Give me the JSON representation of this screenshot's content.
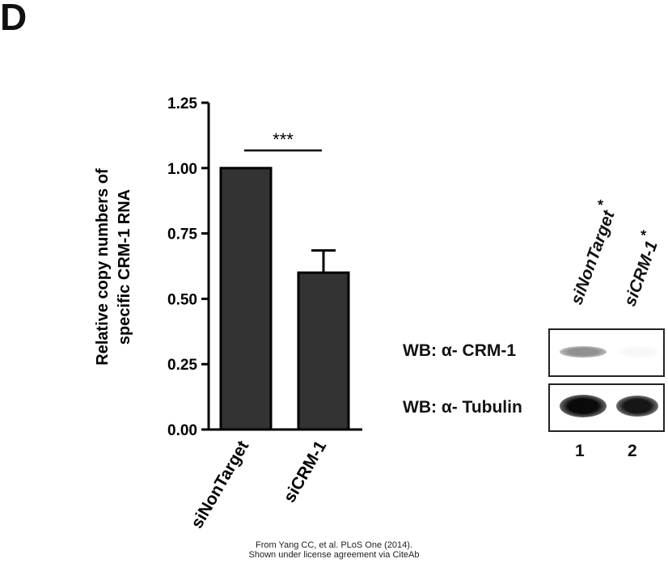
{
  "panel_label": "D",
  "chart_data": {
    "type": "bar",
    "categories": [
      "siNonTarget",
      "siCRM-1"
    ],
    "values": [
      1.0,
      0.6
    ],
    "errors": [
      0.0,
      0.085
    ],
    "ylabel_line1": "Relative copy numbers of",
    "ylabel_line2": "specific CRM-1 RNA",
    "ylim": [
      0,
      1.25
    ],
    "yticks": [
      "0.00",
      "0.25",
      "0.50",
      "0.75",
      "1.00",
      "1.25"
    ],
    "significance": "***",
    "bar_color": "#333333"
  },
  "western_blot": {
    "lanes": [
      {
        "label": "siNonTarget",
        "mark": "*",
        "number": "1"
      },
      {
        "label": "siCRM-1",
        "mark": "*",
        "number": "2"
      }
    ],
    "rows": [
      {
        "label": "WB: α- CRM-1",
        "band_levels": [
          0.45,
          0.03
        ]
      },
      {
        "label": "WB: α- Tubulin",
        "band_levels": [
          1.0,
          0.95
        ]
      }
    ]
  },
  "credit": {
    "line1": "From Yang CC, et al. PLoS One (2014).",
    "line2": "Shown under license agreement via CiteAb"
  }
}
